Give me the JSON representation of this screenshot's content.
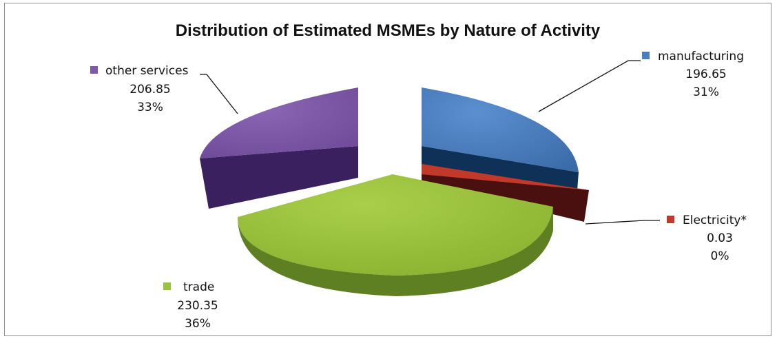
{
  "chart_data": {
    "type": "pie",
    "title": "Distribution of Estimated MSMEs by Nature of Activity",
    "slices": [
      {
        "name": "manufacturing",
        "value": "196.65",
        "percent": "31%",
        "color": "#4a7ebf"
      },
      {
        "name": "Electricity*",
        "value": "0.03",
        "percent": "0%",
        "color": "#c0392b"
      },
      {
        "name": "trade",
        "value": "230.35",
        "percent": "36%",
        "color": "#9bc23c"
      },
      {
        "name": "other services",
        "value": "206.85",
        "percent": "33%",
        "color": "#7f5aa8"
      }
    ],
    "style": "3d-exploded"
  }
}
